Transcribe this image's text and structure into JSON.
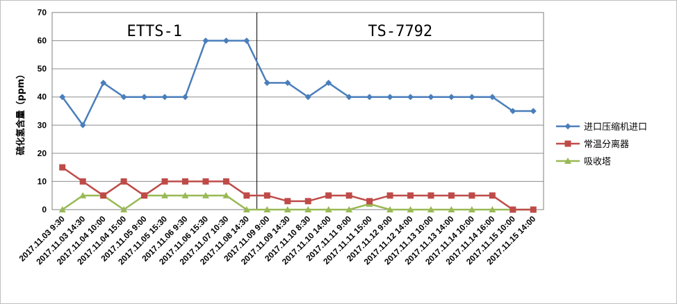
{
  "chart_data": {
    "type": "line",
    "ylabel": "硫化氢含量（ppm）",
    "ylim": [
      0,
      70
    ],
    "yticks": [
      "0",
      "10",
      "20",
      "30",
      "40",
      "50",
      "60",
      "70"
    ],
    "grid": true,
    "legend_position": "right",
    "annotations": [
      "ETTS-1",
      "TS-7792"
    ],
    "divider_after_category_index": 9,
    "categories": [
      "2017.11.03 9:30",
      "2017.11.03 14:30",
      "2017.11.04 10:00",
      "2017.11.04 15:00",
      "2017.11.05 9:00",
      "2017.11.05 15:30",
      "2017.11.06 9:30",
      "2017.11.06 15:30",
      "2017.11.07 10:30",
      "2017.11.08 14:30",
      "2017.11.09 9:00",
      "2017.11.09 14:30",
      "2017.11.10 8:30",
      "2017.11.10 14:00",
      "2017.11.11 9:00",
      "2017.11.11 15:00",
      "2017.11.12 9:00",
      "2017.11.12 14:00",
      "2017.11.13 10:00",
      "2017.11.13 14:00",
      "2017.11.14 10:00",
      "2017.11.14 16:00",
      "2017.11.15 10:00",
      "2017.11.15 14:00"
    ],
    "series": [
      {
        "name": "进口压缩机进口",
        "color": "#4a7ebb",
        "marker": "diamond",
        "values": [
          40,
          30,
          45,
          40,
          40,
          40,
          40,
          60,
          60,
          60,
          45,
          45,
          40,
          45,
          40,
          40,
          40,
          40,
          40,
          40,
          40,
          40,
          35,
          35
        ]
      },
      {
        "name": "常温分离器",
        "color": "#be4b48",
        "marker": "square",
        "values": [
          15,
          10,
          5,
          10,
          5,
          10,
          10,
          10,
          10,
          5,
          5,
          3,
          3,
          5,
          5,
          3,
          5,
          5,
          5,
          5,
          5,
          5,
          0,
          0
        ]
      },
      {
        "name": "吸收塔",
        "color": "#98b954",
        "marker": "triangle",
        "values": [
          0,
          5,
          5,
          0,
          5,
          5,
          5,
          5,
          5,
          0,
          0,
          0,
          0,
          0,
          0,
          2,
          0,
          0,
          0,
          0,
          0,
          0,
          0,
          0
        ]
      }
    ]
  }
}
